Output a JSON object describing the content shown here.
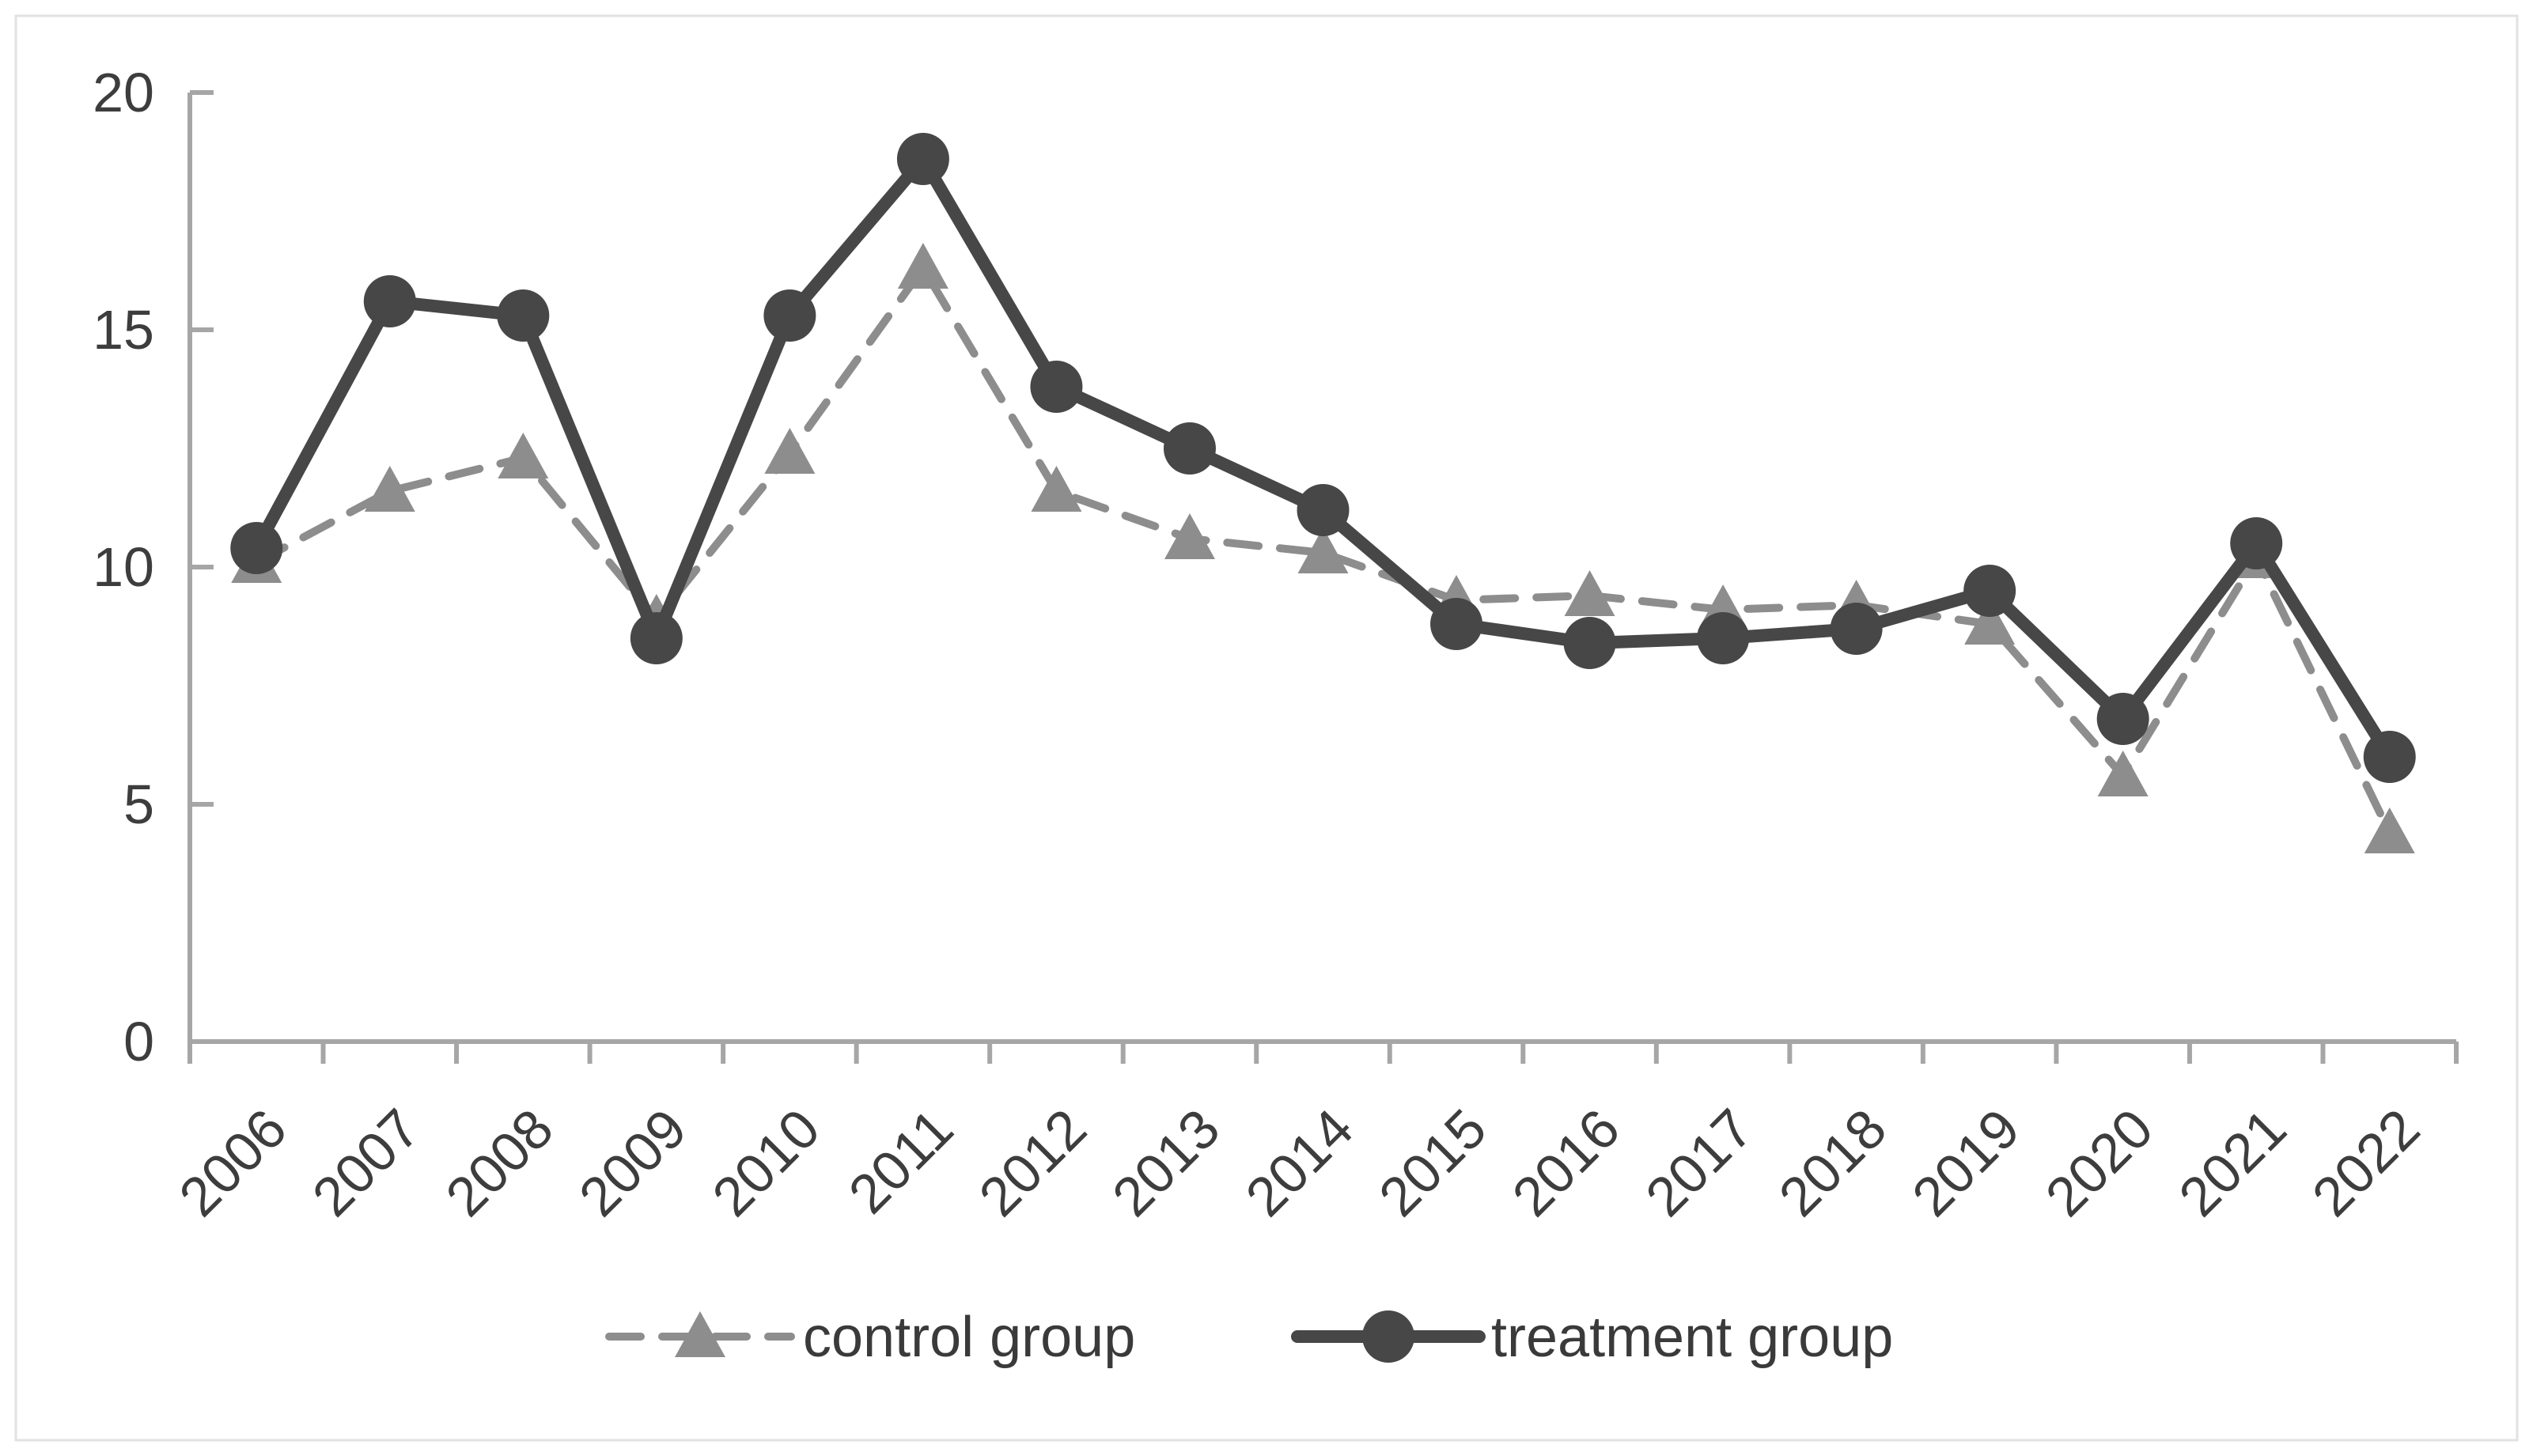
{
  "chart_data": {
    "type": "line",
    "title": "",
    "xlabel": "",
    "ylabel": "",
    "categories": [
      "2006",
      "2007",
      "2008",
      "2009",
      "2010",
      "2011",
      "2012",
      "2013",
      "2014",
      "2015",
      "2016",
      "2017",
      "2018",
      "2019",
      "2020",
      "2021",
      "2022"
    ],
    "series": [
      {
        "name": "control group",
        "marker": "triangle",
        "line_style": "dashed",
        "color": "#8d8d8d",
        "values": [
          10.1,
          11.6,
          12.3,
          8.9,
          12.4,
          16.3,
          11.6,
          10.6,
          10.3,
          9.3,
          9.4,
          9.1,
          9.2,
          8.8,
          5.6,
          10.2,
          4.4
        ]
      },
      {
        "name": "treatment group",
        "marker": "circle",
        "line_style": "solid",
        "color": "#474747",
        "values": [
          10.4,
          15.6,
          15.3,
          8.5,
          15.3,
          18.6,
          13.8,
          12.5,
          11.2,
          8.8,
          8.4,
          8.5,
          8.7,
          9.5,
          6.8,
          10.5,
          6.0
        ]
      }
    ],
    "ylim": [
      0,
      20
    ],
    "yticks": [
      0,
      5,
      10,
      15,
      20
    ],
    "y_tick_labels": [
      "0",
      "5",
      "10",
      "15",
      "20"
    ],
    "grid": false,
    "legend_position": "bottom-center",
    "axis_color": "#a6a6a6",
    "tick_label_color": "#3d3d3d",
    "legend_text_color": "#3a3a3a",
    "frame_border_color": "#e2e2e2",
    "background_color": "#ffffff"
  }
}
